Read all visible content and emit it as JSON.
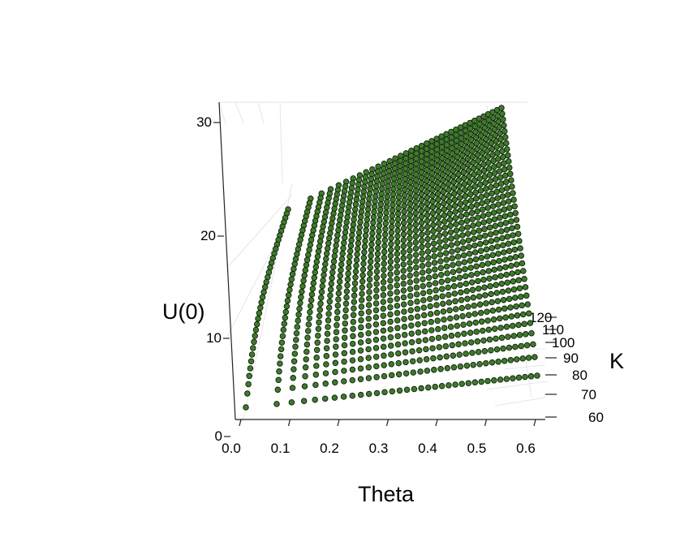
{
  "chart_data": {
    "type": "scatter",
    "subtype": "3d-surface-points",
    "xlabel": "Theta",
    "ylabel": "K",
    "zlabel": "U(0)",
    "x_ticks": [
      "0.0",
      "0.1",
      "0.2",
      "0.3",
      "0.4",
      "0.5",
      "0.6"
    ],
    "y_ticks": [
      "60",
      "70",
      "80",
      "90",
      "100",
      "110",
      "120"
    ],
    "z_ticks": [
      "0",
      "10",
      "20",
      "30"
    ],
    "xlim": [
      0,
      0.6
    ],
    "ylim": [
      55,
      120
    ],
    "zlim": [
      0,
      31
    ],
    "grid": true,
    "point_color": "#3f7a2c",
    "point_edge_color": "#0d1f08",
    "x_values": [
      0.0,
      0.6
    ],
    "y_values": [
      55,
      120
    ],
    "z_corners": {
      "theta0_K55": 1,
      "theta0_K120": 21,
      "theta06_K55": 6,
      "theta06_K120": 31
    },
    "grid_resolution": {
      "theta_steps": 36,
      "k_steps": 36
    }
  }
}
